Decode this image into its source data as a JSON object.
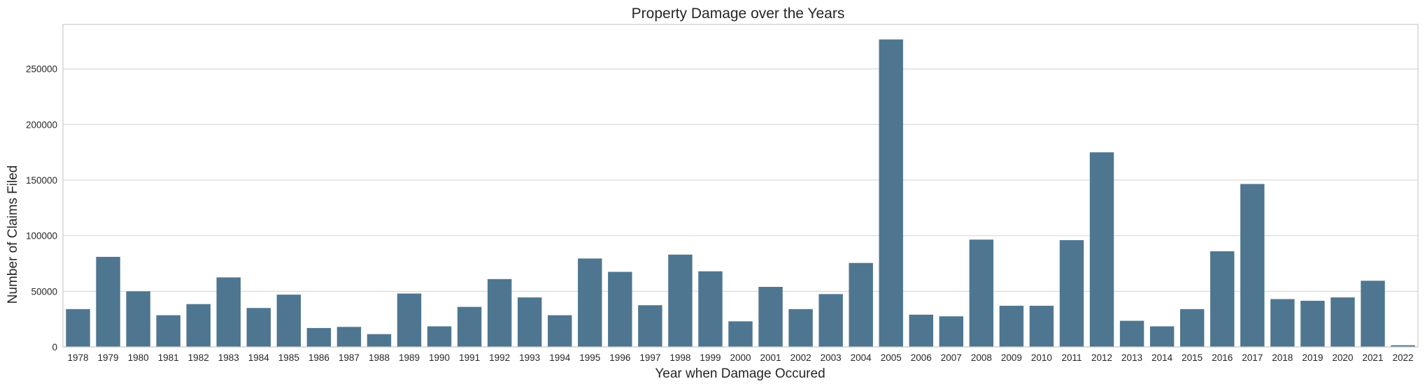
{
  "chart_data": {
    "type": "bar",
    "title": "Property Damage over the Years",
    "xlabel": "Year when Damage Occured",
    "ylabel": "Number of Claims Filed",
    "ylim": [
      0,
      290000
    ],
    "yticks": [
      0,
      50000,
      100000,
      150000,
      200000,
      250000
    ],
    "ytick_labels": [
      "0",
      "50000",
      "100000",
      "150000",
      "200000",
      "250000"
    ],
    "grid": true,
    "bar_color": "#4f7691",
    "categories": [
      "1978",
      "1979",
      "1980",
      "1981",
      "1982",
      "1983",
      "1984",
      "1985",
      "1986",
      "1987",
      "1988",
      "1989",
      "1990",
      "1991",
      "1992",
      "1993",
      "1994",
      "1995",
      "1996",
      "1997",
      "1998",
      "1999",
      "2000",
      "2001",
      "2002",
      "2003",
      "2004",
      "2005",
      "2006",
      "2007",
      "2008",
      "2009",
      "2010",
      "2011",
      "2012",
      "2013",
      "2014",
      "2015",
      "2016",
      "2017",
      "2018",
      "2019",
      "2020",
      "2021",
      "2022"
    ],
    "values": [
      34000,
      81000,
      50000,
      28500,
      38500,
      62500,
      35000,
      47000,
      17000,
      18000,
      11500,
      48000,
      18500,
      36000,
      61000,
      44500,
      28500,
      79500,
      67500,
      37500,
      83000,
      68000,
      23000,
      54000,
      34000,
      47500,
      75500,
      276500,
      29000,
      27500,
      96500,
      37000,
      37000,
      96000,
      175000,
      23500,
      18500,
      34000,
      86000,
      146500,
      43000,
      41500,
      44500,
      59500,
      1500
    ]
  }
}
